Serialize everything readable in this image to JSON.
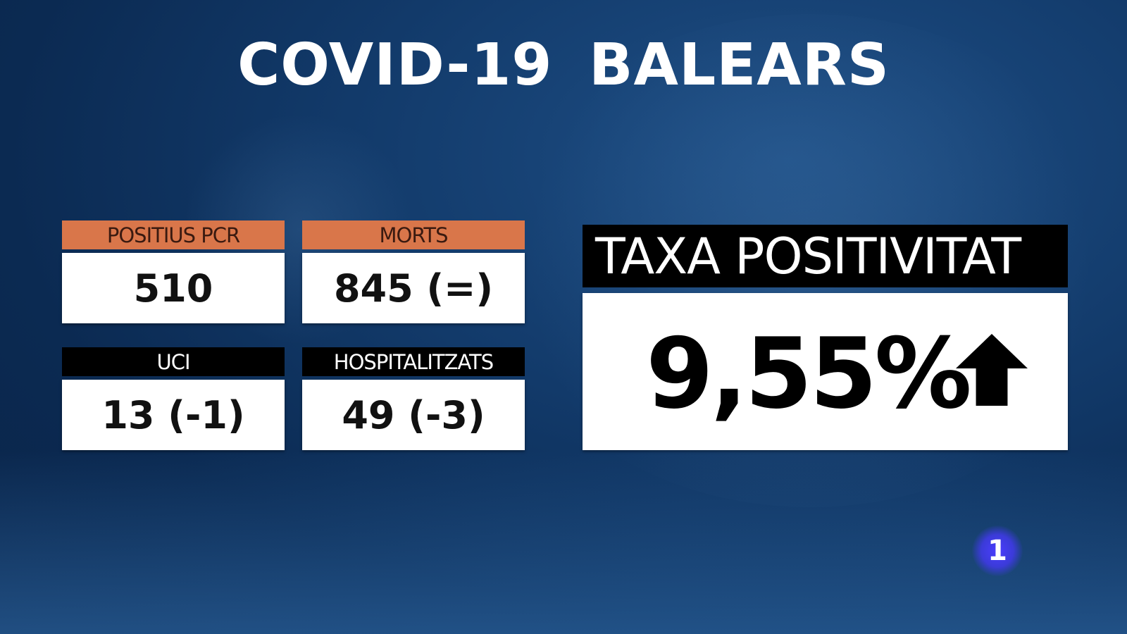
{
  "title": "COVID-19  BALEARS",
  "stats": [
    {
      "label": "POSITIUS PCR",
      "value": "510",
      "header_color": "#d9764a"
    },
    {
      "label": "MORTS",
      "value": "845 (=)",
      "header_color": "#d9764a"
    },
    {
      "label": "UCI",
      "value": "13 (-1)",
      "header_color": "#000000"
    },
    {
      "label": "HOSPITALITZATS",
      "value": "49 (-3)",
      "header_color": "#000000"
    }
  ],
  "positivity": {
    "label": "TAXA POSITIVITAT",
    "value": "9,55%",
    "trend_icon": "arrow-up-icon"
  },
  "channel_logo": {
    "text": "1"
  }
}
